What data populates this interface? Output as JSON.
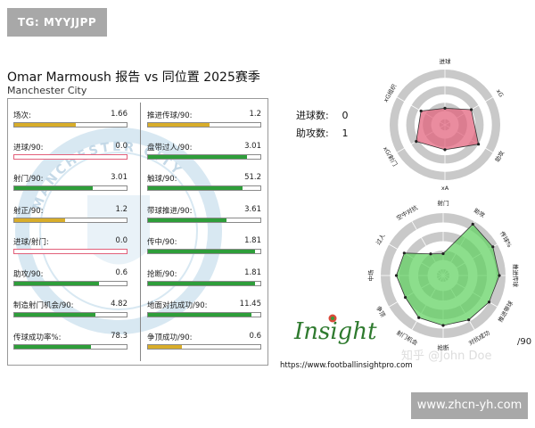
{
  "tag": "TG: MYYJJPP",
  "watermark": "www.zhcn-yh.com",
  "title": "Omar Marmoush 报告 vs 同位置 2025赛季",
  "subtitle": "Manchester City",
  "crest_text": "MANCHESTER CITY",
  "counts": [
    {
      "label": "进球数:",
      "value": "0"
    },
    {
      "label": "助攻数:",
      "value": "1"
    }
  ],
  "colors": {
    "gold": "#d8ad2a",
    "green": "#2e9e3a",
    "pink": "#e2607a",
    "radar_green": "#5fd15f"
  },
  "chart_data": [
    {
      "type": "bar",
      "title": "",
      "columns": [
        {
          "metrics": [
            {
              "label": "场次:",
              "value": "1.66",
              "level": 0.55,
              "color": "gold"
            },
            {
              "label": "进球/90:",
              "value": "0.0",
              "level": 0.0,
              "color": "pink"
            },
            {
              "label": "射门/90:",
              "value": "3.01",
              "level": 0.7,
              "color": "green"
            },
            {
              "label": "射正/90:",
              "value": "1.2",
              "level": 0.45,
              "color": "gold"
            },
            {
              "label": "进球/射门:",
              "value": "0.0",
              "level": 0.0,
              "color": "pink"
            },
            {
              "label": "助攻/90:",
              "value": "0.6",
              "level": 0.75,
              "color": "green"
            },
            {
              "label": "制造射门机会/90:",
              "value": "4.82",
              "level": 0.72,
              "color": "green"
            },
            {
              "label": "传球成功率%:",
              "value": "78.3",
              "level": 0.68,
              "color": "green"
            }
          ]
        },
        {
          "metrics": [
            {
              "label": "推进传球/90:",
              "value": "1.2",
              "level": 0.55,
              "color": "gold"
            },
            {
              "label": "盘带过人/90:",
              "value": "3.01",
              "level": 0.88,
              "color": "green"
            },
            {
              "label": "触球/90:",
              "value": "51.2",
              "level": 0.84,
              "color": "green"
            },
            {
              "label": "带球推进/90:",
              "value": "3.61",
              "level": 0.7,
              "color": "green"
            },
            {
              "label": "传中/90:",
              "value": "1.81",
              "level": 0.95,
              "color": "green"
            },
            {
              "label": "抢断/90:",
              "value": "1.81",
              "level": 0.95,
              "color": "green"
            },
            {
              "label": "地面对抗成功/90:",
              "value": "11.45",
              "level": 0.92,
              "color": "green"
            },
            {
              "label": "争顶成功/90:",
              "value": "0.6",
              "level": 0.3,
              "color": "gold"
            }
          ]
        }
      ]
    },
    {
      "type": "radar",
      "title": "",
      "axes": [
        "进球",
        "xG",
        "助攻",
        "xA",
        "xG/射门",
        "xG组织"
      ],
      "values": [
        0.3,
        0.55,
        0.7,
        0.45,
        0.6,
        0.5
      ],
      "color": "pink"
    },
    {
      "type": "radar",
      "title": "",
      "axes": [
        "射门",
        "助攻",
        "传球%",
        "推进传球",
        "推进带球",
        "对抗成功",
        "抢断",
        "射门机会",
        "争顶",
        "中场",
        "过人",
        "空中对抗"
      ],
      "values": [
        0.35,
        0.95,
        0.92,
        0.9,
        0.85,
        0.82,
        0.8,
        0.78,
        0.7,
        0.75,
        0.72,
        0.4
      ],
      "color": "radar_green"
    }
  ],
  "logo": "Insight",
  "url": "https://www.footballinsightpro.com",
  "credit": "知乎 @John Doe",
  "per90": "/90"
}
